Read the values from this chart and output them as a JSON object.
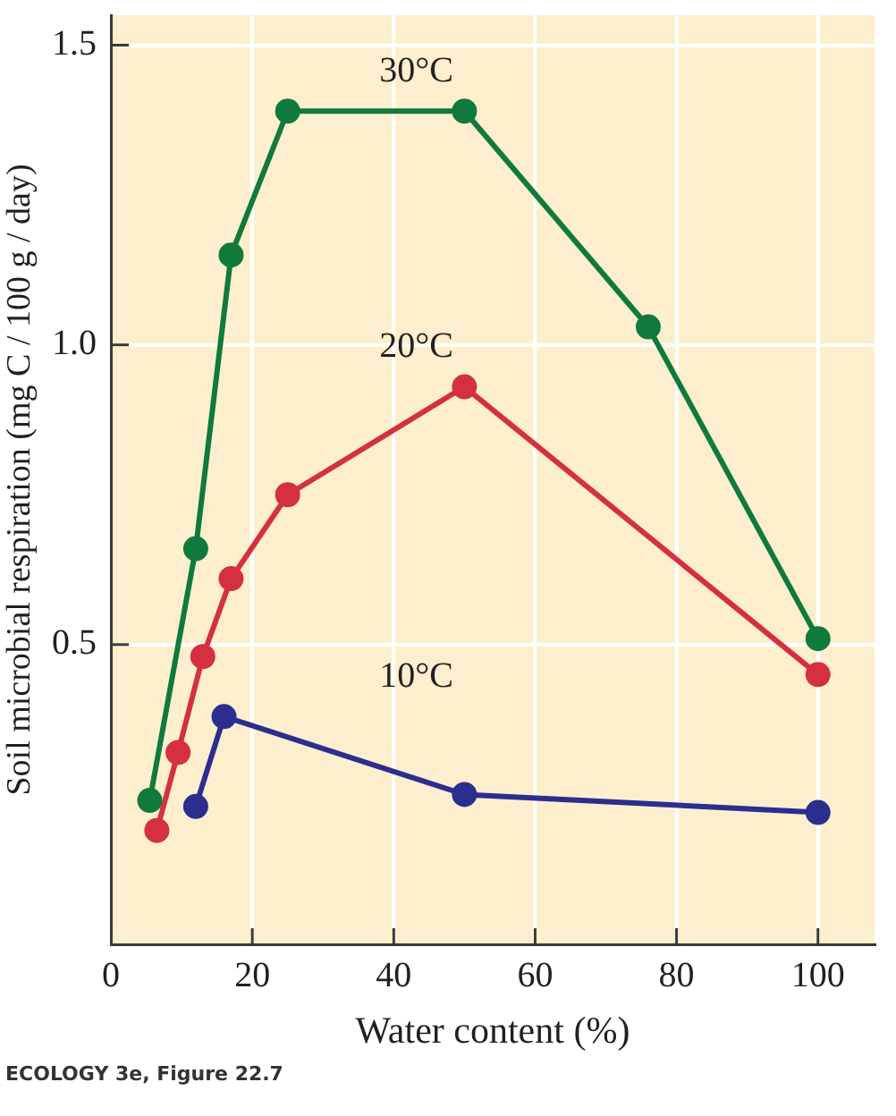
{
  "chart_data": {
    "type": "line",
    "xlabel": "Water content (%)",
    "ylabel": "Soil microbial respiration (mg C / 100 g / day)",
    "xlim": [
      0,
      108
    ],
    "xticks": [
      0,
      20,
      40,
      60,
      80,
      100
    ],
    "ylim": [
      0,
      1.55
    ],
    "yticks": [
      0.5,
      {
        "value": 1,
        "label": "1.0"
      },
      1.5
    ],
    "grid": true,
    "legend": false,
    "marker": "circle",
    "line_style": "solid",
    "series": [
      {
        "name": "30°C",
        "color": "#0f7a3c",
        "x": [
          5.5,
          12,
          17,
          25,
          50,
          76,
          100
        ],
        "values": [
          0.24,
          0.66,
          1.15,
          1.39,
          1.39,
          1.03,
          0.51
        ]
      },
      {
        "name": "20°C",
        "color": "#d5303f",
        "x": [
          6.5,
          9.5,
          13,
          17,
          25,
          50,
          100
        ],
        "values": [
          0.19,
          0.32,
          0.48,
          0.61,
          0.75,
          0.93,
          0.45
        ]
      },
      {
        "name": "10°C",
        "color": "#2b2e8f",
        "x": [
          12,
          16,
          50,
          100
        ],
        "values": [
          0.23,
          0.38,
          0.25,
          0.22
        ]
      }
    ],
    "annotations": [
      "ECOLOGY 3e, Figure 22.7"
    ]
  }
}
